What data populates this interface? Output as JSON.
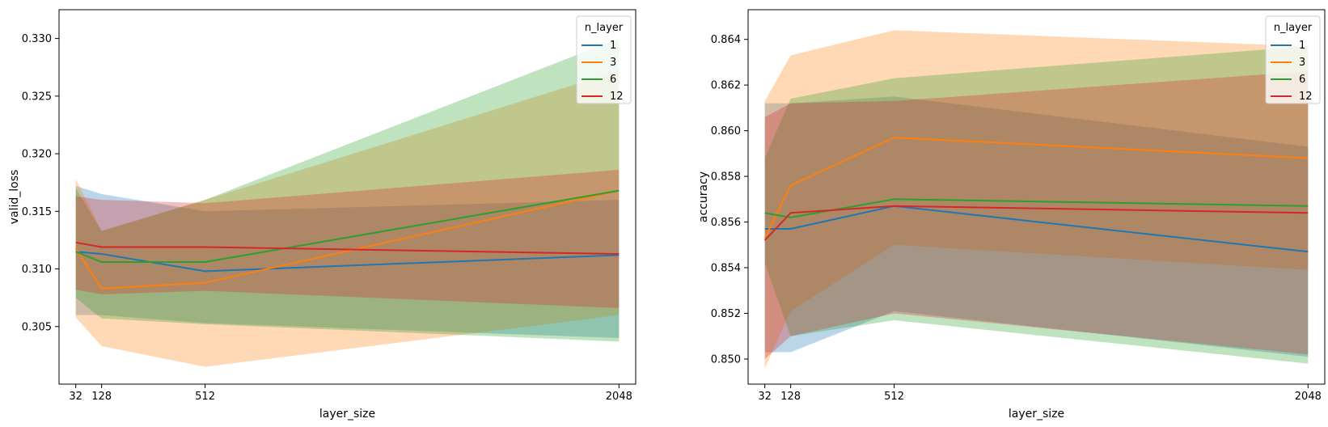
{
  "chart_data": [
    {
      "type": "line",
      "xlabel": "layer_size",
      "ylabel": "valid_loss",
      "x": [
        32,
        128,
        512,
        2048
      ],
      "x_ticks": [
        "32",
        "128",
        "512",
        "2048"
      ],
      "xlim": [
        -30,
        2110
      ],
      "ylim": [
        0.3,
        0.3325
      ],
      "y_ticks": [
        0.305,
        0.31,
        0.315,
        0.32,
        0.325,
        0.33
      ],
      "y_tick_labels": [
        "0.305",
        "0.310",
        "0.315",
        "0.320",
        "0.325",
        "0.330"
      ],
      "grid": false,
      "legend": {
        "title": "n_layer",
        "position": "top-right"
      },
      "series": [
        {
          "name": "1",
          "color": "#1f77b4",
          "values": [
            0.3115,
            0.3113,
            0.3098,
            0.3112
          ],
          "lower": [
            0.306,
            0.306,
            0.3053,
            0.304
          ],
          "upper": [
            0.3172,
            0.3165,
            0.315,
            0.316
          ]
        },
        {
          "name": "3",
          "color": "#ff7f0e",
          "values": [
            0.3118,
            0.3083,
            0.3088,
            0.3168
          ],
          "lower": [
            0.3058,
            0.3033,
            0.3015,
            0.306
          ],
          "upper": [
            0.3178,
            0.3133,
            0.316,
            0.3272
          ]
        },
        {
          "name": "6",
          "color": "#2ca02c",
          "values": [
            0.3115,
            0.3106,
            0.3106,
            0.3168
          ],
          "lower": [
            0.3075,
            0.3057,
            0.3052,
            0.3037
          ],
          "upper": [
            0.317,
            0.3133,
            0.316,
            0.33
          ]
        },
        {
          "name": "12",
          "color": "#d62728",
          "values": [
            0.3123,
            0.3119,
            0.3119,
            0.3113
          ],
          "lower": [
            0.3082,
            0.3078,
            0.3081,
            0.3066
          ],
          "upper": [
            0.3163,
            0.316,
            0.3157,
            0.3186
          ]
        }
      ]
    },
    {
      "type": "line",
      "xlabel": "layer_size",
      "ylabel": "accuracy",
      "x": [
        32,
        128,
        512,
        2048
      ],
      "x_ticks": [
        "32",
        "128",
        "512",
        "2048"
      ],
      "xlim": [
        -30,
        2110
      ],
      "ylim": [
        0.8489,
        0.8653
      ],
      "y_ticks": [
        0.85,
        0.852,
        0.854,
        0.856,
        0.858,
        0.86,
        0.862,
        0.864
      ],
      "y_tick_labels": [
        "0.850",
        "0.852",
        "0.854",
        "0.856",
        "0.858",
        "0.860",
        "0.862",
        "0.864"
      ],
      "grid": false,
      "legend": {
        "title": "n_layer",
        "position": "top-right"
      },
      "series": [
        {
          "name": "1",
          "color": "#1f77b4",
          "values": [
            0.8557,
            0.8557,
            0.8567,
            0.8547
          ],
          "lower": [
            0.8503,
            0.8503,
            0.8521,
            0.8501
          ],
          "upper": [
            0.8612,
            0.8612,
            0.8615,
            0.8593
          ]
        },
        {
          "name": "3",
          "color": "#ff7f0e",
          "values": [
            0.8553,
            0.8576,
            0.8597,
            0.8588
          ],
          "lower": [
            0.8496,
            0.8521,
            0.855,
            0.8539
          ],
          "upper": [
            0.8613,
            0.8633,
            0.8644,
            0.8637
          ]
        },
        {
          "name": "6",
          "color": "#2ca02c",
          "values": [
            0.8564,
            0.8562,
            0.857,
            0.8567
          ],
          "lower": [
            0.8542,
            0.851,
            0.8517,
            0.8498
          ],
          "upper": [
            0.8588,
            0.8614,
            0.8623,
            0.8637
          ]
        },
        {
          "name": "12",
          "color": "#d62728",
          "values": [
            0.8552,
            0.8564,
            0.8567,
            0.8564
          ],
          "lower": [
            0.85,
            0.851,
            0.852,
            0.8502
          ],
          "upper": [
            0.8606,
            0.8612,
            0.8613,
            0.8626
          ]
        }
      ]
    }
  ]
}
